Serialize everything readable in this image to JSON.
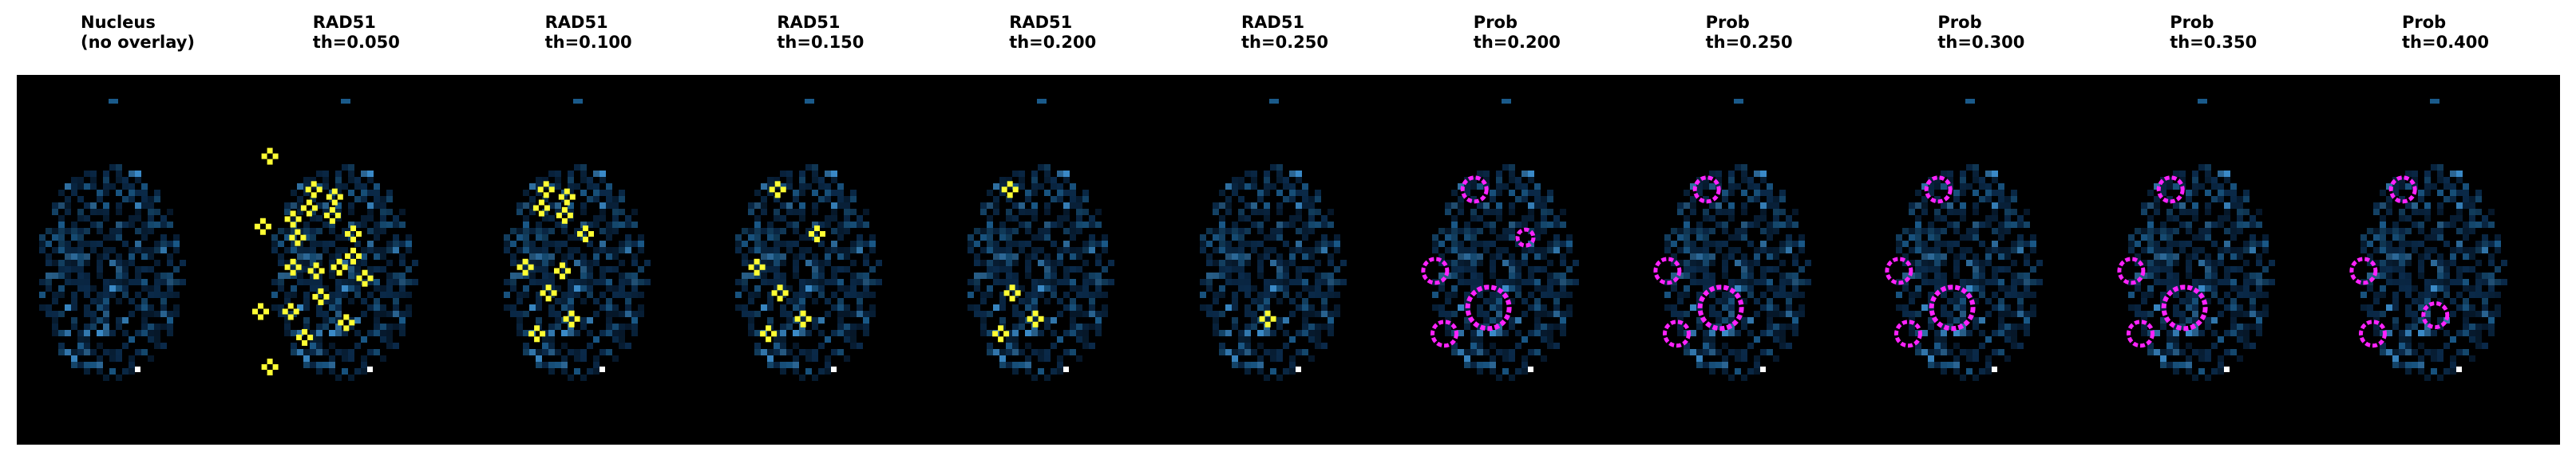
{
  "panels": [
    {
      "title": [
        "Nucleus",
        "(no overlay)"
      ],
      "overlay": "none",
      "spots": []
    },
    {
      "title": [
        "RAD51",
        "th=0.050"
      ],
      "overlay": "rad51",
      "spots": [
        [
          0.09,
          0.22
        ],
        [
          0.28,
          0.31
        ],
        [
          0.37,
          0.33
        ],
        [
          0.26,
          0.36
        ],
        [
          0.36,
          0.38
        ],
        [
          0.19,
          0.39
        ],
        [
          0.06,
          0.41
        ],
        [
          0.45,
          0.43
        ],
        [
          0.21,
          0.44
        ],
        [
          0.45,
          0.49
        ],
        [
          0.19,
          0.52
        ],
        [
          0.29,
          0.53
        ],
        [
          0.39,
          0.52
        ],
        [
          0.5,
          0.55
        ],
        [
          0.31,
          0.6
        ],
        [
          0.18,
          0.64
        ],
        [
          0.05,
          0.64
        ],
        [
          0.42,
          0.67
        ],
        [
          0.24,
          0.71
        ],
        [
          0.09,
          0.79
        ]
      ]
    },
    {
      "title": [
        "RAD51",
        "th=0.100"
      ],
      "overlay": "rad51",
      "spots": [
        [
          0.28,
          0.31
        ],
        [
          0.37,
          0.33
        ],
        [
          0.26,
          0.36
        ],
        [
          0.36,
          0.38
        ],
        [
          0.45,
          0.43
        ],
        [
          0.19,
          0.52
        ],
        [
          0.35,
          0.53
        ],
        [
          0.29,
          0.59
        ],
        [
          0.39,
          0.66
        ],
        [
          0.24,
          0.7
        ]
      ]
    },
    {
      "title": [
        "RAD51",
        "th=0.150"
      ],
      "overlay": "rad51",
      "spots": [
        [
          0.28,
          0.31
        ],
        [
          0.45,
          0.43
        ],
        [
          0.19,
          0.52
        ],
        [
          0.29,
          0.59
        ],
        [
          0.39,
          0.66
        ],
        [
          0.24,
          0.7
        ]
      ]
    },
    {
      "title": [
        "RAD51",
        "th=0.200"
      ],
      "overlay": "rad51",
      "spots": [
        [
          0.28,
          0.31
        ],
        [
          0.29,
          0.59
        ],
        [
          0.39,
          0.66
        ],
        [
          0.24,
          0.7
        ]
      ]
    },
    {
      "title": [
        "RAD51",
        "th=0.250"
      ],
      "overlay": "rad51",
      "spots": [
        [
          0.39,
          0.66
        ]
      ]
    },
    {
      "title": [
        "Prob",
        "th=0.200"
      ],
      "overlay": "prob",
      "spots": [
        [
          0.28,
          0.31,
          "s"
        ],
        [
          0.5,
          0.44,
          "xs"
        ],
        [
          0.11,
          0.53,
          "s"
        ],
        [
          0.34,
          0.63,
          "l"
        ],
        [
          0.15,
          0.7,
          "s"
        ]
      ]
    },
    {
      "title": [
        "Prob",
        "th=0.250"
      ],
      "overlay": "prob",
      "spots": [
        [
          0.28,
          0.31,
          "s"
        ],
        [
          0.11,
          0.53,
          "s"
        ],
        [
          0.34,
          0.63,
          "l"
        ],
        [
          0.15,
          0.7,
          "s"
        ]
      ]
    },
    {
      "title": [
        "Prob",
        "th=0.300"
      ],
      "overlay": "prob",
      "spots": [
        [
          0.28,
          0.31,
          "s"
        ],
        [
          0.11,
          0.53,
          "s"
        ],
        [
          0.34,
          0.63,
          "l"
        ],
        [
          0.15,
          0.7,
          "s"
        ]
      ]
    },
    {
      "title": [
        "Prob",
        "th=0.350"
      ],
      "overlay": "prob",
      "spots": [
        [
          0.28,
          0.31,
          "s"
        ],
        [
          0.11,
          0.53,
          "s"
        ],
        [
          0.34,
          0.63,
          "l"
        ],
        [
          0.15,
          0.7,
          "s"
        ]
      ]
    },
    {
      "title": [
        "Prob",
        "th=0.400"
      ],
      "overlay": "prob",
      "spots": [
        [
          0.28,
          0.31,
          "s"
        ],
        [
          0.11,
          0.53,
          "s"
        ],
        [
          0.42,
          0.65,
          "s"
        ],
        [
          0.15,
          0.7,
          "s"
        ]
      ]
    }
  ],
  "colors": {
    "background": "#000000",
    "nucleus_dim": "#0a2a4a",
    "nucleus_mid": "#1a5a8a",
    "nucleus_bright": "#3a8ac8",
    "nucleus_peak": "#ffffff",
    "rad51_overlay": "#ffff33",
    "prob_overlay": "#ff22ff"
  }
}
